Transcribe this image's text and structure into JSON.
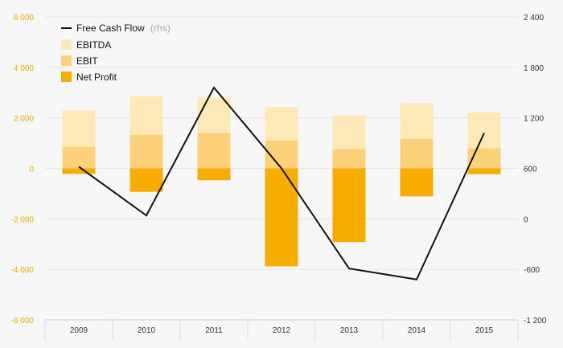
{
  "chart_data": {
    "type": "bar",
    "categories": [
      "2009",
      "2010",
      "2011",
      "2012",
      "2013",
      "2014",
      "2015"
    ],
    "series": [
      {
        "name": "EBITDA",
        "kind": "bar",
        "axis": "left",
        "color": "#fde8b8",
        "values": [
          2300,
          2850,
          2800,
          2430,
          2100,
          2580,
          2220
        ]
      },
      {
        "name": "EBIT",
        "kind": "bar",
        "axis": "left",
        "color": "#fcd17a",
        "values": [
          850,
          1330,
          1400,
          1100,
          760,
          1170,
          790
        ]
      },
      {
        "name": "Net Profit",
        "kind": "bar",
        "axis": "left",
        "color": "#f6ad00",
        "values": [
          -220,
          -930,
          -470,
          -3880,
          -2920,
          -1110,
          -230
        ]
      },
      {
        "name": "Free Cash Flow",
        "name_suffix": "(rhs)",
        "kind": "line",
        "axis": "right",
        "color": "#111111",
        "values": [
          620,
          40,
          1560,
          600,
          -590,
          -720,
          1020
        ]
      }
    ],
    "y_left": {
      "ylim": [
        -6000,
        6000
      ],
      "ticks": [
        6000,
        4000,
        2000,
        0,
        -2000,
        -4000,
        -6000
      ],
      "tick_labels": [
        "6 000",
        "4 000",
        "2 000",
        "0",
        "-2 000",
        "-4 000",
        "-6 000"
      ],
      "tick_color": "#f0a500"
    },
    "y_right": {
      "ylim": [
        -1200,
        2400
      ],
      "ticks": [
        2400,
        1800,
        1200,
        600,
        0,
        -600,
        -1200
      ],
      "tick_labels": [
        "2 400",
        "1 800",
        "1 200",
        "600",
        "0",
        "-600",
        "-1 200"
      ],
      "tick_color": "#333333"
    },
    "grid": true,
    "legend_position": "top-left"
  }
}
